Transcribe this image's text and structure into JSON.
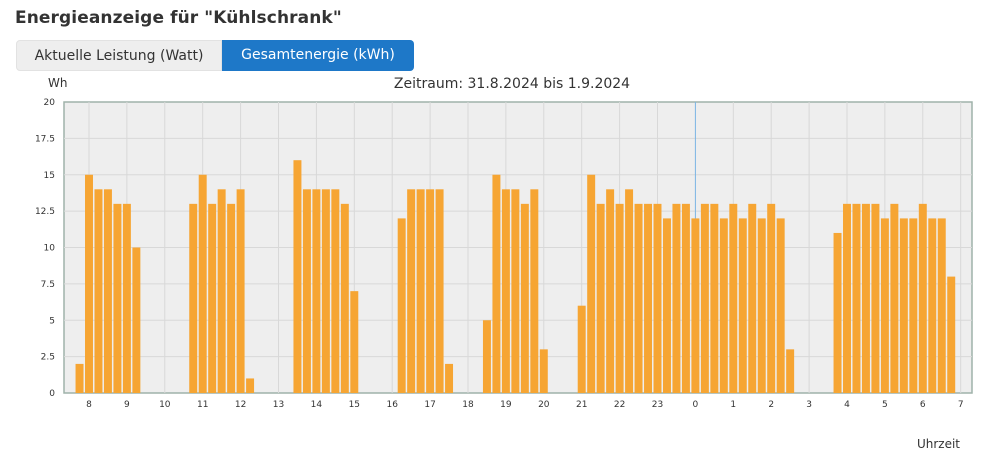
{
  "page": {
    "title": "Energieanzeige für \"Kühlschrank\""
  },
  "tabs": [
    {
      "label": "Aktuelle Leistung (Watt)",
      "active": false
    },
    {
      "label": "Gesamtenergie (kWh)",
      "active": true
    }
  ],
  "colors": {
    "bar": "#f6a533",
    "plot_bg": "#eeeeee",
    "grid": "#d8d8d8",
    "frame": "#9fb2aa",
    "tab_active": "#1e78c8",
    "marker": "#7ab4e4"
  },
  "chart_data": {
    "type": "bar",
    "title": "Zeitraum: 31.8.2024 bis 1.9.2024",
    "ylabel": "Wh",
    "xlabel": "Uhrzeit",
    "ylim": [
      0,
      20
    ],
    "yticks": [
      "0",
      "2.5",
      "5",
      "7.5",
      "10",
      "12.5",
      "15",
      "17.5",
      "20"
    ],
    "xticks": [
      "8",
      "9",
      "10",
      "11",
      "12",
      "13",
      "14",
      "15",
      "16",
      "17",
      "18",
      "19",
      "20",
      "21",
      "22",
      "23",
      "0",
      "1",
      "2",
      "3",
      "4",
      "5",
      "6",
      "7"
    ],
    "x_start_hour": 7.75,
    "bar_interval_hours": 0.25,
    "values": [
      2,
      15,
      14,
      14,
      13,
      13,
      10,
      0,
      0,
      0,
      0,
      0,
      13,
      15,
      13,
      14,
      13,
      14,
      1,
      0,
      0,
      0,
      0,
      16,
      14,
      14,
      14,
      14,
      13,
      7,
      0,
      0,
      0,
      0,
      12,
      14,
      14,
      14,
      14,
      2,
      0,
      0,
      0,
      5,
      15,
      14,
      14,
      13,
      14,
      3,
      0,
      0,
      0,
      6,
      15,
      13,
      14,
      13,
      14,
      13,
      13,
      13,
      12,
      13,
      13,
      12,
      13,
      13,
      12,
      13,
      12,
      13,
      12,
      13,
      12,
      3,
      0,
      0,
      0,
      0,
      11,
      13,
      13,
      13,
      13,
      12,
      13,
      12,
      12,
      13,
      12,
      12,
      8
    ],
    "midnight_marker": "0"
  }
}
